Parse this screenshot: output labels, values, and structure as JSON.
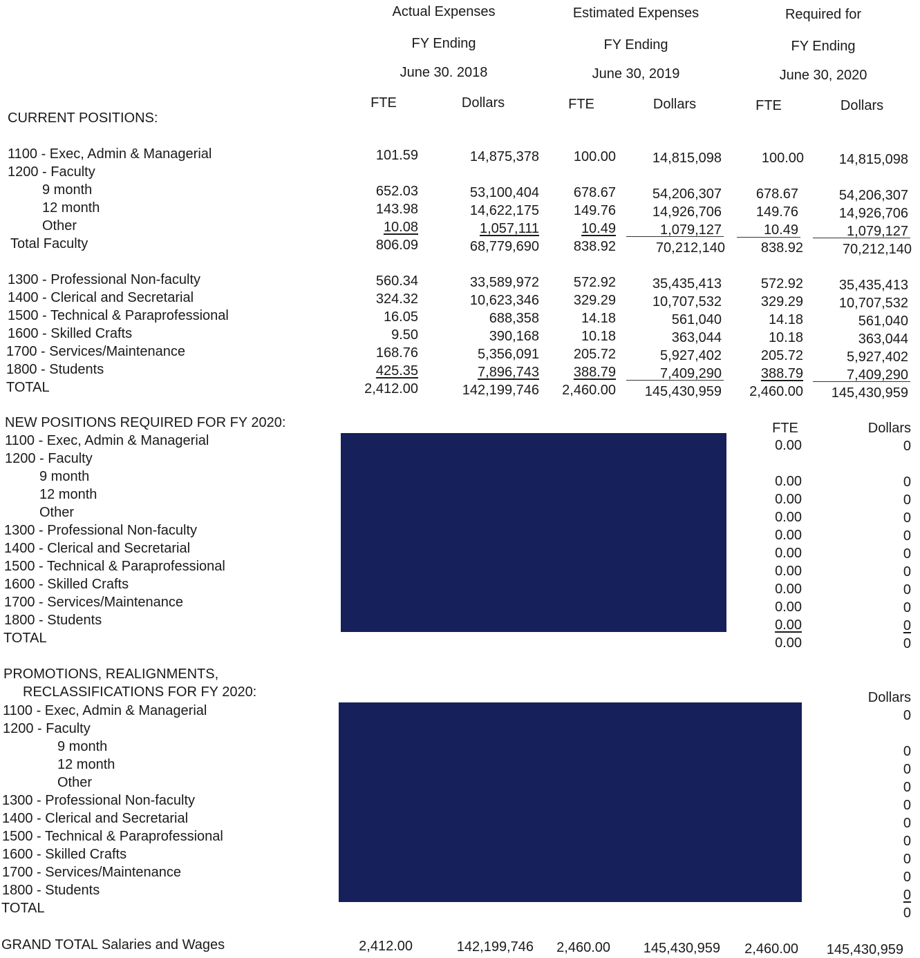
{
  "headers": {
    "groups": [
      {
        "line1": "Actual Expenses",
        "line2": "FY Ending",
        "line3": "June 30. 2018"
      },
      {
        "line1": "Estimated Expenses",
        "line2": "FY Ending",
        "line3": "June 30, 2019"
      },
      {
        "line1": "Required for",
        "line2": "FY Ending",
        "line3": "June 30, 2020"
      }
    ],
    "fte": "FTE",
    "dollars": "Dollars"
  },
  "current": {
    "title": "CURRENT POSITIONS:",
    "rows": [
      {
        "label": "1100 - Exec, Admin & Managerial",
        "fte18": "101.59",
        "usd18": "14,875,378",
        "fte19": "100.00",
        "usd19": "14,815,098",
        "fte20": "100.00",
        "usd20": "14,815,098"
      },
      {
        "label": "1200 - Faculty"
      },
      {
        "label": "9 month",
        "fte18": "652.03",
        "usd18": "53,100,404",
        "fte19": "678.67",
        "usd19": "54,206,307",
        "fte20": "678.67",
        "usd20": "54,206,307"
      },
      {
        "label": "12 month",
        "fte18": "143.98",
        "usd18": "14,622,175",
        "fte19": "149.76",
        "usd19": "14,926,706",
        "fte20": "149.76",
        "usd20": "14,926,706"
      },
      {
        "label": "Other",
        "fte18": "10.08",
        "usd18": "1,057,111",
        "fte19": "10.49",
        "usd19": "1,079,127",
        "fte20": "10.49",
        "usd20": "1,079,127"
      },
      {
        "label": "Total Faculty",
        "fte18": "806.09",
        "usd18": "68,779,690",
        "fte19": "838.92",
        "usd19": "70,212,140",
        "fte20": "838.92",
        "usd20": "70,212,140"
      },
      {
        "label": "1300 - Professional Non-faculty",
        "fte18": "560.34",
        "usd18": "33,589,972",
        "fte19": "572.92",
        "usd19": "35,435,413",
        "fte20": "572.92",
        "usd20": "35,435,413"
      },
      {
        "label": "1400 - Clerical and Secretarial",
        "fte18": "324.32",
        "usd18": "10,623,346",
        "fte19": "329.29",
        "usd19": "10,707,532",
        "fte20": "329.29",
        "usd20": "10,707,532"
      },
      {
        "label": "1500 - Technical & Paraprofessional",
        "fte18": "16.05",
        "usd18": "688,358",
        "fte19": "14.18",
        "usd19": "561,040",
        "fte20": "14.18",
        "usd20": "561,040"
      },
      {
        "label": "1600 - Skilled Crafts",
        "fte18": "9.50",
        "usd18": "390,168",
        "fte19": "10.18",
        "usd19": "363,044",
        "fte20": "10.18",
        "usd20": "363,044"
      },
      {
        "label": "1700 - Services/Maintenance",
        "fte18": "168.76",
        "usd18": "5,356,091",
        "fte19": "205.72",
        "usd19": "5,927,402",
        "fte20": "205.72",
        "usd20": "5,927,402"
      },
      {
        "label": "1800 - Students",
        "fte18": "425.35",
        "usd18": "7,896,743",
        "fte19": "388.79",
        "usd19": "7,409,290",
        "fte20": "388.79",
        "usd20": "7,409,290"
      },
      {
        "label": "TOTAL",
        "fte18": "2,412.00",
        "usd18": "142,199,746",
        "fte19": "2,460.00",
        "usd19": "145,430,959",
        "fte20": "2,460.00",
        "usd20": "145,430,959"
      }
    ]
  },
  "new_positions": {
    "title": "NEW POSITIONS REQUIRED FOR FY 2020:",
    "fte_header": "FTE",
    "dollars_header": "Dollars",
    "rows": [
      {
        "label": "1100 - Exec, Admin & Managerial",
        "fte": "0.00",
        "usd": "0"
      },
      {
        "label": "1200 - Faculty"
      },
      {
        "label": "9 month",
        "fte": "0.00",
        "usd": "0"
      },
      {
        "label": "12 month",
        "fte": "0.00",
        "usd": "0"
      },
      {
        "label": "Other",
        "fte": "0.00",
        "usd": "0"
      },
      {
        "label": "1300 - Professional Non-faculty",
        "fte": "0.00",
        "usd": "0"
      },
      {
        "label": "1400 - Clerical and Secretarial",
        "fte": "0.00",
        "usd": "0"
      },
      {
        "label": "1500 - Technical & Paraprofessional",
        "fte": "0.00",
        "usd": "0"
      },
      {
        "label": "1600 - Skilled Crafts",
        "fte": "0.00",
        "usd": "0"
      },
      {
        "label": "1700 - Services/Maintenance",
        "fte": "0.00",
        "usd": "0"
      },
      {
        "label": "1800 - Students",
        "fte": "0.00",
        "usd": "0"
      },
      {
        "label": "TOTAL",
        "fte": "0.00",
        "usd": "0"
      }
    ]
  },
  "promotions": {
    "title1": "PROMOTIONS, REALIGNMENTS,",
    "title2": "RECLASSIFICATIONS FOR FY 2020:",
    "dollars_header": "Dollars",
    "rows": [
      {
        "label": "1100 - Exec, Admin & Managerial",
        "usd": "0"
      },
      {
        "label": "1200 - Faculty"
      },
      {
        "label": "9 month",
        "usd": "0"
      },
      {
        "label": "12 month",
        "usd": "0"
      },
      {
        "label": "Other",
        "usd": "0"
      },
      {
        "label": "1300 - Professional Non-faculty",
        "usd": "0"
      },
      {
        "label": "1400 - Clerical and Secretarial",
        "usd": "0"
      },
      {
        "label": "1500 - Technical & Paraprofessional",
        "usd": "0"
      },
      {
        "label": "1600 - Skilled Crafts",
        "usd": "0"
      },
      {
        "label": "1700 - Services/Maintenance",
        "usd": "0"
      },
      {
        "label": "1800 - Students",
        "usd": "0"
      },
      {
        "label": "TOTAL",
        "usd": "0"
      }
    ]
  },
  "grand_total": {
    "label": "GRAND TOTAL Salaries and Wages",
    "fte18": "2,412.00",
    "usd18": "142,199,746",
    "fte19": "2,460.00",
    "usd19": "145,430,959",
    "fte20": "2,460.00",
    "usd20": "145,430,959"
  },
  "colors": {
    "redaction": "#16205a",
    "text": "#1a1a1a"
  }
}
